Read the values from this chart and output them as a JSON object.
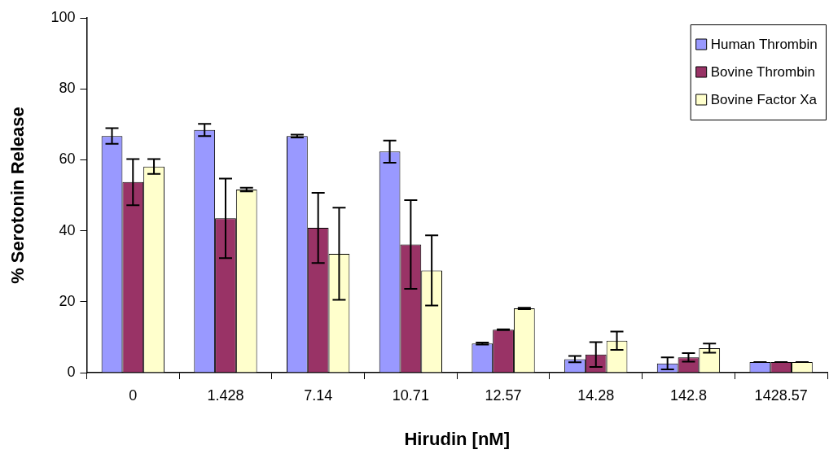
{
  "chart_data": {
    "type": "bar",
    "xlabel": "Hirudin [nM]",
    "ylabel": "% Serotonin Release",
    "categories": [
      "0",
      "1.428",
      "7.14",
      "10.71",
      "12.57",
      "14.28",
      "142.8",
      "1428.57"
    ],
    "series": [
      {
        "name": "Human Thrombin",
        "color": "#9999ff",
        "values": [
          66.7,
          68.4,
          66.7,
          62.3,
          8.2,
          3.8,
          2.6,
          3.0
        ],
        "errors": [
          2.2,
          1.7,
          0.4,
          3.1,
          0.3,
          0.9,
          1.7,
          0
        ]
      },
      {
        "name": "Bovine Thrombin",
        "color": "#993366",
        "values": [
          53.7,
          43.5,
          40.8,
          36.1,
          12.1,
          5.1,
          4.3,
          3.0
        ],
        "errors": [
          6.5,
          11.2,
          9.9,
          12.5,
          0.1,
          3.5,
          1.2,
          0
        ]
      },
      {
        "name": "Bovine Factor Xa",
        "color": "#ffffcc",
        "values": [
          58.1,
          51.6,
          33.5,
          28.8,
          18.1,
          9.0,
          6.9,
          3.0
        ],
        "errors": [
          2.1,
          0.5,
          13.0,
          9.9,
          0.2,
          2.6,
          1.3,
          0
        ]
      }
    ],
    "ylim": [
      0,
      100
    ],
    "yticks": [
      0,
      20,
      40,
      60,
      80,
      100
    ],
    "grid": false,
    "legend": "top right"
  }
}
